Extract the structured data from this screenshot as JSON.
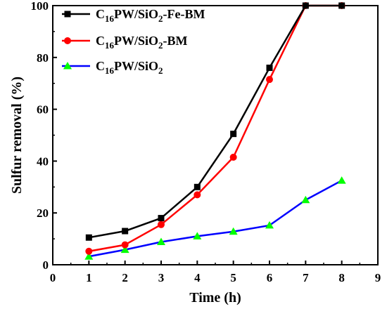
{
  "chart_data": {
    "type": "line",
    "xlabel": "Time (h)",
    "ylabel": "Sulfur removal (%)",
    "xlim": [
      0,
      9
    ],
    "ylim": [
      0,
      100
    ],
    "xticks": [
      "0",
      "1",
      "2",
      "3",
      "4",
      "5",
      "6",
      "7",
      "8",
      "9"
    ],
    "yticks": [
      "0",
      "20",
      "40",
      "60",
      "80",
      "100"
    ],
    "legend_position": "top-left",
    "grid": false,
    "series": [
      {
        "name_parts": {
          "base": "C",
          "sub1": "16",
          "mid": "PW/SiO",
          "sub2": "2",
          "suffix": "-Fe-BM"
        },
        "color": "#000000",
        "marker": "square",
        "x": [
          1,
          2,
          3,
          4,
          5,
          6,
          7,
          8
        ],
        "y": [
          10.5,
          13,
          18,
          30,
          50.5,
          76,
          100,
          100
        ]
      },
      {
        "name_parts": {
          "base": "C",
          "sub1": "16",
          "mid": "PW/SiO",
          "sub2": "2",
          "suffix": "-BM"
        },
        "color": "#ff0000",
        "marker": "circle",
        "x": [
          1,
          2,
          3,
          4,
          5,
          6,
          7,
          8
        ],
        "y": [
          5.2,
          7.7,
          15.5,
          27,
          41.5,
          71.5,
          100,
          100
        ]
      },
      {
        "name_parts": {
          "base": "C",
          "sub1": "16",
          "mid": "PW/SiO",
          "sub2": "2",
          "suffix": ""
        },
        "color": "#0000ff",
        "marker_color": "#00ff00",
        "marker": "triangle",
        "x": [
          1,
          2,
          3,
          4,
          5,
          6,
          7,
          8
        ],
        "y": [
          3.2,
          5.8,
          8.8,
          11,
          12.8,
          15.2,
          25,
          32.5
        ]
      }
    ]
  }
}
